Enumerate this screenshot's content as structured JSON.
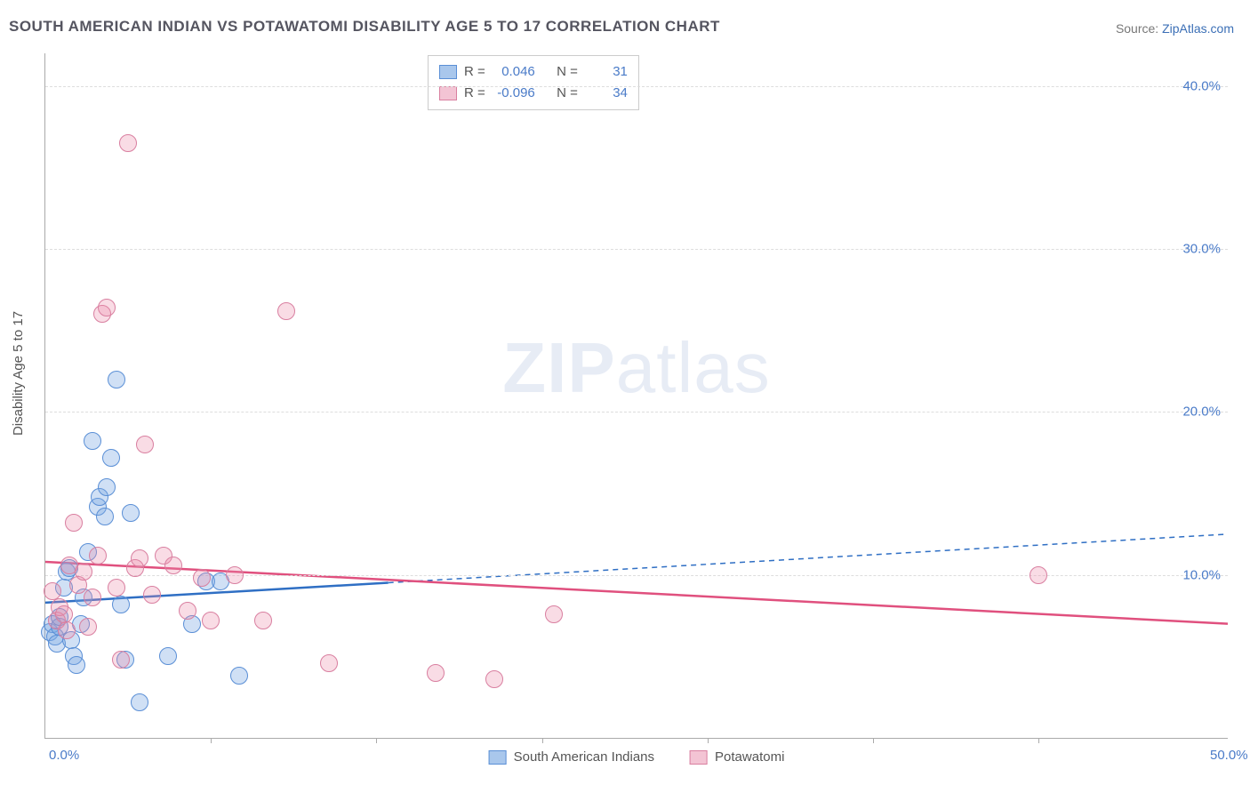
{
  "title": "SOUTH AMERICAN INDIAN VS POTAWATOMI DISABILITY AGE 5 TO 17 CORRELATION CHART",
  "source_prefix": "Source: ",
  "source_link": "ZipAtlas.com",
  "y_axis_label": "Disability Age 5 to 17",
  "watermark_zip": "ZIP",
  "watermark_atlas": "atlas",
  "chart": {
    "type": "scatter",
    "xlim": [
      0,
      50
    ],
    "ylim": [
      0,
      42
    ],
    "x_ticks": [
      0,
      50
    ],
    "x_tick_labels": [
      "0.0%",
      "50.0%"
    ],
    "x_minor_ticks": [
      7,
      14,
      21,
      28,
      35,
      42
    ],
    "y_ticks": [
      10,
      20,
      30,
      40
    ],
    "y_tick_labels": [
      "10.0%",
      "20.0%",
      "30.0%",
      "40.0%"
    ],
    "background_color": "#ffffff",
    "grid_color": "#dddddd",
    "point_radius": 9,
    "point_stroke_width": 1.5,
    "series": [
      {
        "name": "South American Indians",
        "fill": "rgba(120,165,225,0.35)",
        "stroke": "#5a8fd6",
        "swatch_fill": "#a9c7ec",
        "swatch_border": "#5a8fd6",
        "R": "0.046",
        "N": "31",
        "trend": {
          "x1": 0,
          "y1": 8.3,
          "x2": 50,
          "y2": 12.5,
          "solid_until_x": 14.5,
          "color": "#2f6fc4",
          "width": 2.5
        },
        "points": [
          [
            0.2,
            6.5
          ],
          [
            0.3,
            7.0
          ],
          [
            0.4,
            6.2
          ],
          [
            0.5,
            5.8
          ],
          [
            0.6,
            6.8
          ],
          [
            0.6,
            7.4
          ],
          [
            0.8,
            9.2
          ],
          [
            0.9,
            10.2
          ],
          [
            1.0,
            10.4
          ],
          [
            1.1,
            6.0
          ],
          [
            1.2,
            5.0
          ],
          [
            1.3,
            4.5
          ],
          [
            1.5,
            7.0
          ],
          [
            1.6,
            8.6
          ],
          [
            1.8,
            11.4
          ],
          [
            2.0,
            18.2
          ],
          [
            2.2,
            14.2
          ],
          [
            2.3,
            14.8
          ],
          [
            2.5,
            13.6
          ],
          [
            2.6,
            15.4
          ],
          [
            2.8,
            17.2
          ],
          [
            3.0,
            22.0
          ],
          [
            3.2,
            8.2
          ],
          [
            3.4,
            4.8
          ],
          [
            3.6,
            13.8
          ],
          [
            4.0,
            2.2
          ],
          [
            5.2,
            5.0
          ],
          [
            6.2,
            7.0
          ],
          [
            6.8,
            9.6
          ],
          [
            8.2,
            3.8
          ],
          [
            7.4,
            9.6
          ]
        ]
      },
      {
        "name": "Potawatomi",
        "fill": "rgba(235,140,170,0.30)",
        "stroke": "#d97fa0",
        "swatch_fill": "#f3c4d4",
        "swatch_border": "#d97fa0",
        "R": "-0.096",
        "N": "34",
        "trend": {
          "x1": 0,
          "y1": 10.8,
          "x2": 50,
          "y2": 7.0,
          "solid_until_x": 50,
          "color": "#e0507e",
          "width": 2.5
        },
        "points": [
          [
            0.3,
            9.0
          ],
          [
            0.5,
            7.2
          ],
          [
            0.6,
            8.0
          ],
          [
            0.8,
            7.6
          ],
          [
            0.9,
            6.6
          ],
          [
            1.0,
            10.6
          ],
          [
            1.2,
            13.2
          ],
          [
            1.4,
            9.4
          ],
          [
            1.6,
            10.2
          ],
          [
            1.8,
            6.8
          ],
          [
            2.0,
            8.6
          ],
          [
            2.2,
            11.2
          ],
          [
            2.4,
            26.0
          ],
          [
            2.6,
            26.4
          ],
          [
            3.0,
            9.2
          ],
          [
            3.2,
            4.8
          ],
          [
            3.5,
            36.5
          ],
          [
            3.8,
            10.4
          ],
          [
            4.0,
            11.0
          ],
          [
            4.2,
            18.0
          ],
          [
            4.5,
            8.8
          ],
          [
            5.0,
            11.2
          ],
          [
            5.4,
            10.6
          ],
          [
            6.0,
            7.8
          ],
          [
            6.6,
            9.8
          ],
          [
            7.0,
            7.2
          ],
          [
            8.0,
            10.0
          ],
          [
            9.2,
            7.2
          ],
          [
            10.2,
            26.2
          ],
          [
            12.0,
            4.6
          ],
          [
            16.5,
            4.0
          ],
          [
            19.0,
            3.6
          ],
          [
            21.5,
            7.6
          ],
          [
            42.0,
            10.0
          ]
        ]
      }
    ]
  },
  "stats_labels": {
    "R": "R =",
    "N": "N ="
  },
  "bottom_legend": [
    {
      "label": "South American Indians",
      "fill": "#a9c7ec",
      "border": "#5a8fd6"
    },
    {
      "label": "Potawatomi",
      "fill": "#f3c4d4",
      "border": "#d97fa0"
    }
  ]
}
